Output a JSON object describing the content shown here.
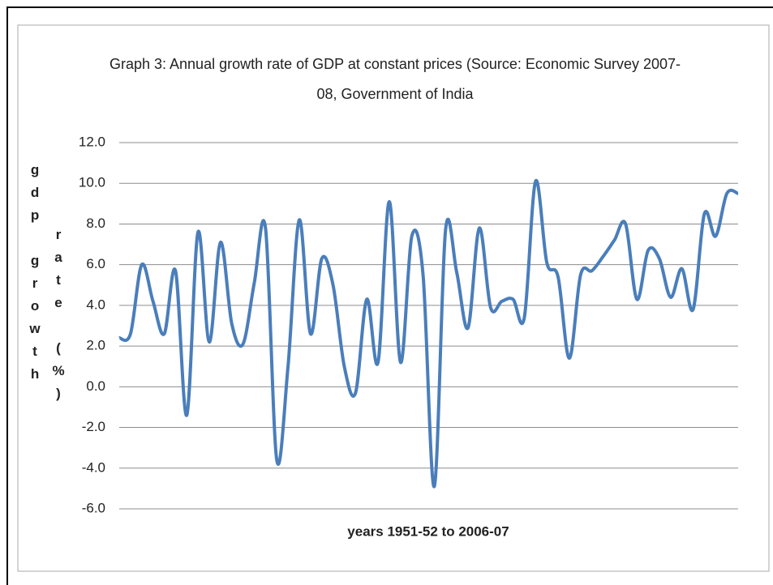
{
  "chart_data": {
    "type": "line",
    "title": [
      "Graph 3: Annual growth rate of GDP at constant prices (Source: Economic Survey 2007-",
      "08, Government of India"
    ],
    "x_label": "years 1951-52 to 2006-07",
    "y_label": [
      "gdp  growth",
      "rate (%)"
    ],
    "series": [
      {
        "name": "GDP growth",
        "color": "#4a7ebb",
        "values": [
          2.4,
          2.6,
          6.0,
          4.2,
          2.6,
          5.7,
          -1.4,
          7.6,
          2.2,
          7.1,
          3.1,
          2.1,
          5.1,
          7.8,
          -3.6,
          1.0,
          8.2,
          2.6,
          6.3,
          5.0,
          1.0,
          -0.3,
          4.3,
          1.2,
          9.1,
          1.2,
          7.4,
          5.5,
          -4.9,
          7.7,
          5.6,
          2.9,
          7.8,
          3.9,
          4.2,
          4.3,
          3.4,
          10.1,
          6.1,
          5.4,
          1.4,
          5.5,
          5.7,
          6.4,
          7.2,
          8.0,
          4.3,
          6.7,
          6.3,
          4.4,
          5.8,
          3.8,
          8.5,
          7.4,
          9.5,
          9.5
        ]
      }
    ],
    "ylim": [
      -6,
      12
    ],
    "yticks": [
      {
        "value": -6,
        "label": "-6.0"
      },
      {
        "value": -4,
        "label": "-4.0"
      },
      {
        "value": -2,
        "label": "-2.0"
      },
      {
        "value": 0,
        "label": "0.0"
      },
      {
        "value": 2,
        "label": "2.0"
      },
      {
        "value": 4,
        "label": "4.0"
      },
      {
        "value": 6,
        "label": "6.0"
      },
      {
        "value": 8,
        "label": "8.0"
      },
      {
        "value": 10,
        "label": "10.0"
      },
      {
        "value": 12,
        "label": "12.0"
      }
    ],
    "grid": true
  }
}
